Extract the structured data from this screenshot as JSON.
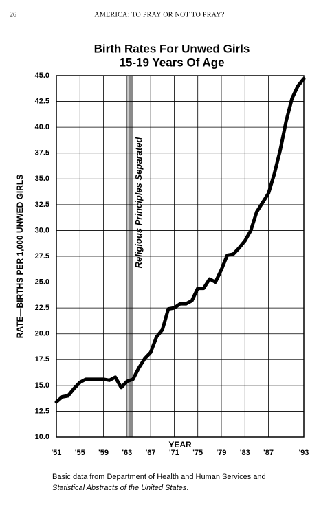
{
  "page_header": {
    "page_number": "26",
    "running_title": "AMERICA: TO PRAY OR NOT TO PRAY?"
  },
  "chart_data": {
    "type": "line",
    "title": "Birth Rates For Unwed Girls",
    "subtitle": "15-19 Years Of Age",
    "x_label": "YEAR",
    "y_label": "RATE—BIRTHS PER 1,000 UNWED GIRLS",
    "x": [
      1951,
      1952,
      1953,
      1954,
      1955,
      1956,
      1957,
      1958,
      1959,
      1960,
      1961,
      1962,
      1963,
      1964,
      1965,
      1966,
      1967,
      1968,
      1969,
      1970,
      1971,
      1972,
      1973,
      1974,
      1975,
      1976,
      1977,
      1978,
      1979,
      1980,
      1981,
      1982,
      1983,
      1984,
      1985,
      1986,
      1987,
      1988,
      1989,
      1990,
      1991,
      1992,
      1993
    ],
    "values": [
      13.4,
      13.9,
      14.0,
      14.7,
      15.3,
      15.6,
      15.6,
      15.6,
      15.6,
      15.5,
      15.8,
      14.8,
      15.4,
      15.6,
      16.7,
      17.6,
      18.2,
      19.7,
      20.4,
      22.4,
      22.5,
      22.9,
      22.9,
      23.2,
      24.4,
      24.4,
      25.3,
      25.0,
      26.2,
      27.6,
      27.7,
      28.3,
      29.0,
      30.0,
      31.8,
      32.7,
      33.6,
      35.5,
      37.8,
      40.6,
      42.8,
      44.0,
      44.7
    ],
    "color": "#000000",
    "xlim": [
      1951,
      1993
    ],
    "ylim": [
      10,
      45
    ],
    "xticks": [
      {
        "value": 1951,
        "label": "'51"
      },
      {
        "value": 1955,
        "label": "'55"
      },
      {
        "value": 1959,
        "label": "'59"
      },
      {
        "value": 1963,
        "label": "'63"
      },
      {
        "value": 1967,
        "label": "'67"
      },
      {
        "value": 1971,
        "label": "'71"
      },
      {
        "value": 1975,
        "label": "'75"
      },
      {
        "value": 1979,
        "label": "'79"
      },
      {
        "value": 1983,
        "label": "'83"
      },
      {
        "value": 1987,
        "label": "'87"
      },
      {
        "value": 1993,
        "label": "'93"
      }
    ],
    "yticks": [
      {
        "value": 10,
        "label": "10.0"
      },
      {
        "value": 12.5,
        "label": "12.5"
      },
      {
        "value": 15,
        "label": "15.0"
      },
      {
        "value": 17.5,
        "label": "17.5"
      },
      {
        "value": 20,
        "label": "20.0"
      },
      {
        "value": 22.5,
        "label": "22.5"
      },
      {
        "value": 25,
        "label": "25.0"
      },
      {
        "value": 27.5,
        "label": "27.5"
      },
      {
        "value": 30,
        "label": "30.0"
      },
      {
        "value": 32.5,
        "label": "32.5"
      },
      {
        "value": 35,
        "label": "35.0"
      },
      {
        "value": 37.5,
        "label": "37.5"
      },
      {
        "value": 40,
        "label": "40.0"
      },
      {
        "value": 42.5,
        "label": "42.5"
      },
      {
        "value": 45,
        "label": "45.0"
      }
    ],
    "grid": true,
    "band": {
      "x": [
        1963.2,
        1964
      ],
      "color": "#8a8a8a",
      "label": "Religious Principles Separated"
    }
  },
  "source": {
    "line1": "Basic data from Department of Health and Human Services and",
    "line2": "Statistical Abstracts of the United States",
    "line2_end": "."
  }
}
